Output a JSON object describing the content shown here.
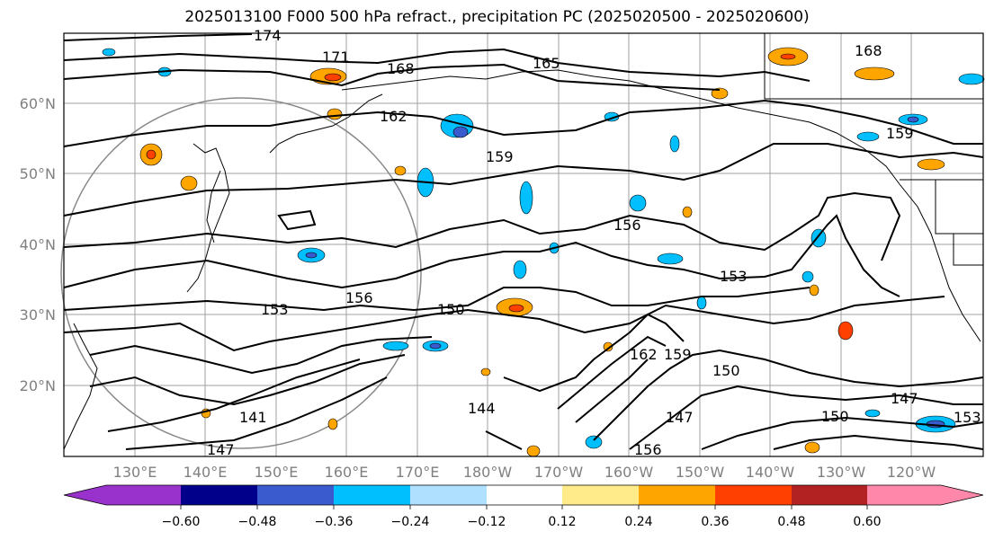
{
  "title": "2025013100 F000 500 hPa refract., precipitation PC (2025020500 - 2025020600)",
  "lat_labels": [
    "60°N",
    "50°N",
    "40°N",
    "30°N",
    "20°N"
  ],
  "lon_labels": [
    "130°E",
    "140°E",
    "150°E",
    "160°E",
    "170°E",
    "180°W",
    "170°W",
    "160°W",
    "150°W",
    "140°W",
    "130°W",
    "120°W"
  ],
  "colorbar": {
    "ticks": [
      "−0.60",
      "−0.48",
      "−0.36",
      "−0.24",
      "−0.12",
      "0.12",
      "0.24",
      "0.36",
      "0.48",
      "0.60"
    ],
    "colors": [
      "#9932cc",
      "#00008b",
      "#3a5bcd",
      "#00bfff",
      "#b0e0ff",
      "#ffffff",
      "#ffeb8a",
      "#ffa500",
      "#ff4000",
      "#b22222",
      "#ff88aa"
    ]
  },
  "contour_labels": [
    "174",
    "171",
    "168",
    "165",
    "162",
    "159",
    "156",
    "153",
    "150",
    "147",
    "144",
    "141",
    "168",
    "159",
    "156",
    "153",
    "150",
    "147",
    "150",
    "153",
    "159",
    "162",
    "147",
    "156"
  ],
  "colors": {
    "contour": "#000000",
    "grid": "#a0a0a0",
    "coast": "#000000"
  }
}
